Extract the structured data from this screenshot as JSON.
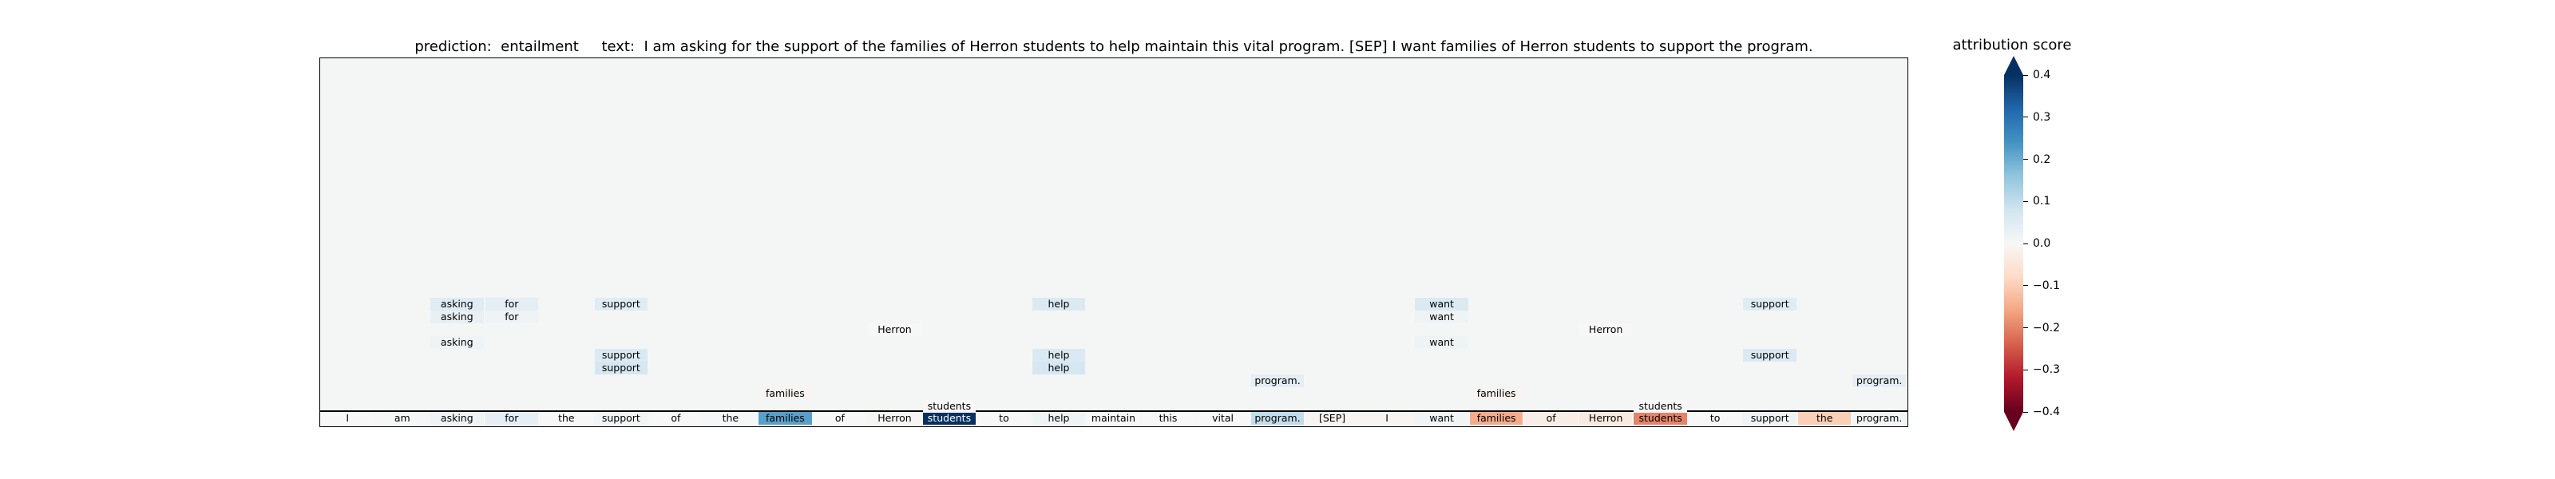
{
  "title": {
    "prediction_label": "prediction:",
    "prediction": "entailment",
    "text_label": "text:",
    "text": "I am asking for the support of the families of Herron students to help maintain this vital program. [SEP] I want families of Herron students to support the program."
  },
  "colorbar": {
    "label": "attribution score",
    "ticks": [
      "0.4",
      "0.3",
      "0.2",
      "0.1",
      "0.0",
      "−0.1",
      "−0.2",
      "−0.3",
      "−0.4"
    ],
    "range": [
      -0.4,
      0.4
    ],
    "colors": [
      "#67001f",
      "#b2182b",
      "#d6604d",
      "#f4a582",
      "#fddbc7",
      "#f7f7f7",
      "#d1e5f0",
      "#92c5de",
      "#4393c3",
      "#2166ac",
      "#053061"
    ]
  },
  "chart_data": {
    "type": "heatmap",
    "tokens": [
      "I",
      "am",
      "asking",
      "for",
      "the",
      "support",
      "of",
      "the",
      "families",
      "of",
      "Herron",
      "students",
      "to",
      "help",
      "maintain",
      "this",
      "vital",
      "program.",
      "[SEP]",
      "I",
      "want",
      "families",
      "of",
      "Herron",
      "students",
      "to",
      "support",
      "the",
      "program."
    ],
    "base_scores": [
      0.0,
      0.005,
      0.02,
      0.04,
      0.0,
      0.015,
      0.0,
      0.005,
      0.22,
      0.0,
      -0.005,
      0.4,
      0.0,
      0.02,
      0.0,
      0.0,
      0.0,
      0.1,
      -0.01,
      -0.01,
      0.015,
      -0.15,
      -0.03,
      -0.04,
      -0.2,
      0.0,
      0.02,
      -0.1,
      0.01
    ],
    "attention_rows": [
      [
        {
          "token": "asking",
          "score": 0.05
        },
        {
          "token": "for",
          "score": 0.04
        },
        {
          "token": "support",
          "score": 0.05
        },
        {
          "token": "help",
          "score": 0.06
        },
        {
          "token": "want",
          "score": 0.06
        },
        {
          "token": "support",
          "score": 0.05
        }
      ],
      [
        {
          "token": "asking",
          "score": 0.03
        },
        {
          "token": "for",
          "score": 0.02
        },
        {
          "token": "want",
          "score": 0.02
        }
      ],
      [
        {
          "token": "Herron",
          "score": 0.0
        },
        {
          "token": "Herron",
          "score": 0.0
        }
      ],
      [
        {
          "token": "asking",
          "score": 0.02
        },
        {
          "token": "want",
          "score": 0.02
        }
      ],
      [
        {
          "token": "support",
          "score": 0.06
        },
        {
          "token": "help",
          "score": 0.06
        },
        {
          "token": "support",
          "score": 0.06
        }
      ],
      [
        {
          "token": "support",
          "score": 0.07
        },
        {
          "token": "help",
          "score": 0.07
        }
      ],
      [
        {
          "token": "program.",
          "score": 0.04
        },
        {
          "token": "program.",
          "score": 0.04
        }
      ],
      [
        {
          "token": "families",
          "score": -0.01
        },
        {
          "token": "families",
          "score": -0.01
        }
      ],
      [
        {
          "token": "students",
          "score": 0.0
        },
        {
          "token": "students",
          "score": 0.0
        }
      ]
    ]
  }
}
